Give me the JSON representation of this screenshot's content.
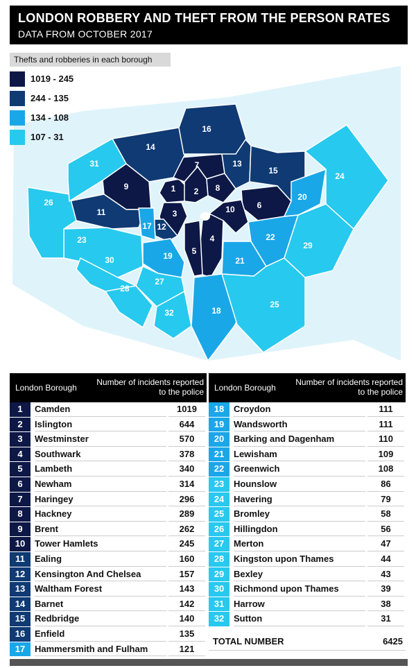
{
  "header": {
    "title": "LONDON ROBBERY AND THEFT FROM THE PERSON RATES",
    "subtitle": "DATA FROM OCTOBER 2017"
  },
  "legend": {
    "title": "Thefts and robberies in each borough",
    "items": [
      {
        "label": "1019 - 245",
        "color": "#0d1846"
      },
      {
        "label": "244 - 135",
        "color": "#0f3a73"
      },
      {
        "label": "134 - 108",
        "color": "#1aa7e8"
      },
      {
        "label": "107 - 31",
        "color": "#27c9ee"
      }
    ]
  },
  "table": {
    "col1": "London Borough",
    "col2": "Number of incidents reported to the police",
    "total_label": "TOTAL NUMBER",
    "total_value": "6425"
  },
  "chart_data": {
    "type": "table",
    "title": "LONDON ROBBERY AND THEFT FROM THE PERSON RATES",
    "rows": [
      {
        "rank": "1",
        "borough": "Camden",
        "value": 1019,
        "color": "#0d1846"
      },
      {
        "rank": "2",
        "borough": "Islington",
        "value": 644,
        "color": "#0d1846"
      },
      {
        "rank": "3",
        "borough": "Westminster",
        "value": 570,
        "color": "#0d1846"
      },
      {
        "rank": "4",
        "borough": "Southwark",
        "value": 378,
        "color": "#0d1846"
      },
      {
        "rank": "5",
        "borough": "Lambeth",
        "value": 340,
        "color": "#0d1846"
      },
      {
        "rank": "6",
        "borough": "Newham",
        "value": 314,
        "color": "#0d1846"
      },
      {
        "rank": "7",
        "borough": "Haringey",
        "value": 296,
        "color": "#0d1846"
      },
      {
        "rank": "8",
        "borough": "Hackney",
        "value": 289,
        "color": "#0d1846"
      },
      {
        "rank": "9",
        "borough": "Brent",
        "value": 262,
        "color": "#0d1846"
      },
      {
        "rank": "10",
        "borough": "Tower Hamlets",
        "value": 245,
        "color": "#0d1846"
      },
      {
        "rank": "11",
        "borough": "Ealing",
        "value": 160,
        "color": "#0f3a73"
      },
      {
        "rank": "12",
        "borough": "Kensington And Chelsea",
        "value": 157,
        "color": "#0f3a73"
      },
      {
        "rank": "13",
        "borough": "Waltham Forest",
        "value": 143,
        "color": "#0f3a73"
      },
      {
        "rank": "14",
        "borough": "Barnet",
        "value": 142,
        "color": "#0f3a73"
      },
      {
        "rank": "15",
        "borough": "Redbridge",
        "value": 140,
        "color": "#0f3a73"
      },
      {
        "rank": "16",
        "borough": "Enfield",
        "value": 135,
        "color": "#0f3a73"
      },
      {
        "rank": "17",
        "borough": "Hammersmith and Fulham",
        "value": 121,
        "color": "#1aa7e8"
      },
      {
        "rank": "18",
        "borough": "Croydon",
        "value": 111,
        "color": "#1aa7e8"
      },
      {
        "rank": "19",
        "borough": "Wandsworth",
        "value": 111,
        "color": "#1aa7e8"
      },
      {
        "rank": "20",
        "borough": "Barking and Dagenham",
        "value": 110,
        "color": "#1aa7e8"
      },
      {
        "rank": "21",
        "borough": "Lewisham",
        "value": 109,
        "color": "#1aa7e8"
      },
      {
        "rank": "22",
        "borough": "Greenwich",
        "value": 108,
        "color": "#1aa7e8"
      },
      {
        "rank": "23",
        "borough": "Hounslow",
        "value": 86,
        "color": "#27c9ee"
      },
      {
        "rank": "24",
        "borough": "Havering",
        "value": 79,
        "color": "#27c9ee"
      },
      {
        "rank": "25",
        "borough": "Bromley",
        "value": 58,
        "color": "#27c9ee"
      },
      {
        "rank": "26",
        "borough": "Hillingdon",
        "value": 56,
        "color": "#27c9ee"
      },
      {
        "rank": "27",
        "borough": "Merton",
        "value": 47,
        "color": "#27c9ee"
      },
      {
        "rank": "28",
        "borough": "Kingston upon Thames",
        "value": 44,
        "color": "#27c9ee"
      },
      {
        "rank": "29",
        "borough": "Bexley",
        "value": 43,
        "color": "#27c9ee"
      },
      {
        "rank": "30",
        "borough": "Richmond upon Thames",
        "value": 39,
        "color": "#27c9ee"
      },
      {
        "rank": "31",
        "borough": "Harrow",
        "value": 38,
        "color": "#27c9ee"
      },
      {
        "rank": "32",
        "borough": "Sutton",
        "value": 31,
        "color": "#27c9ee"
      }
    ]
  }
}
